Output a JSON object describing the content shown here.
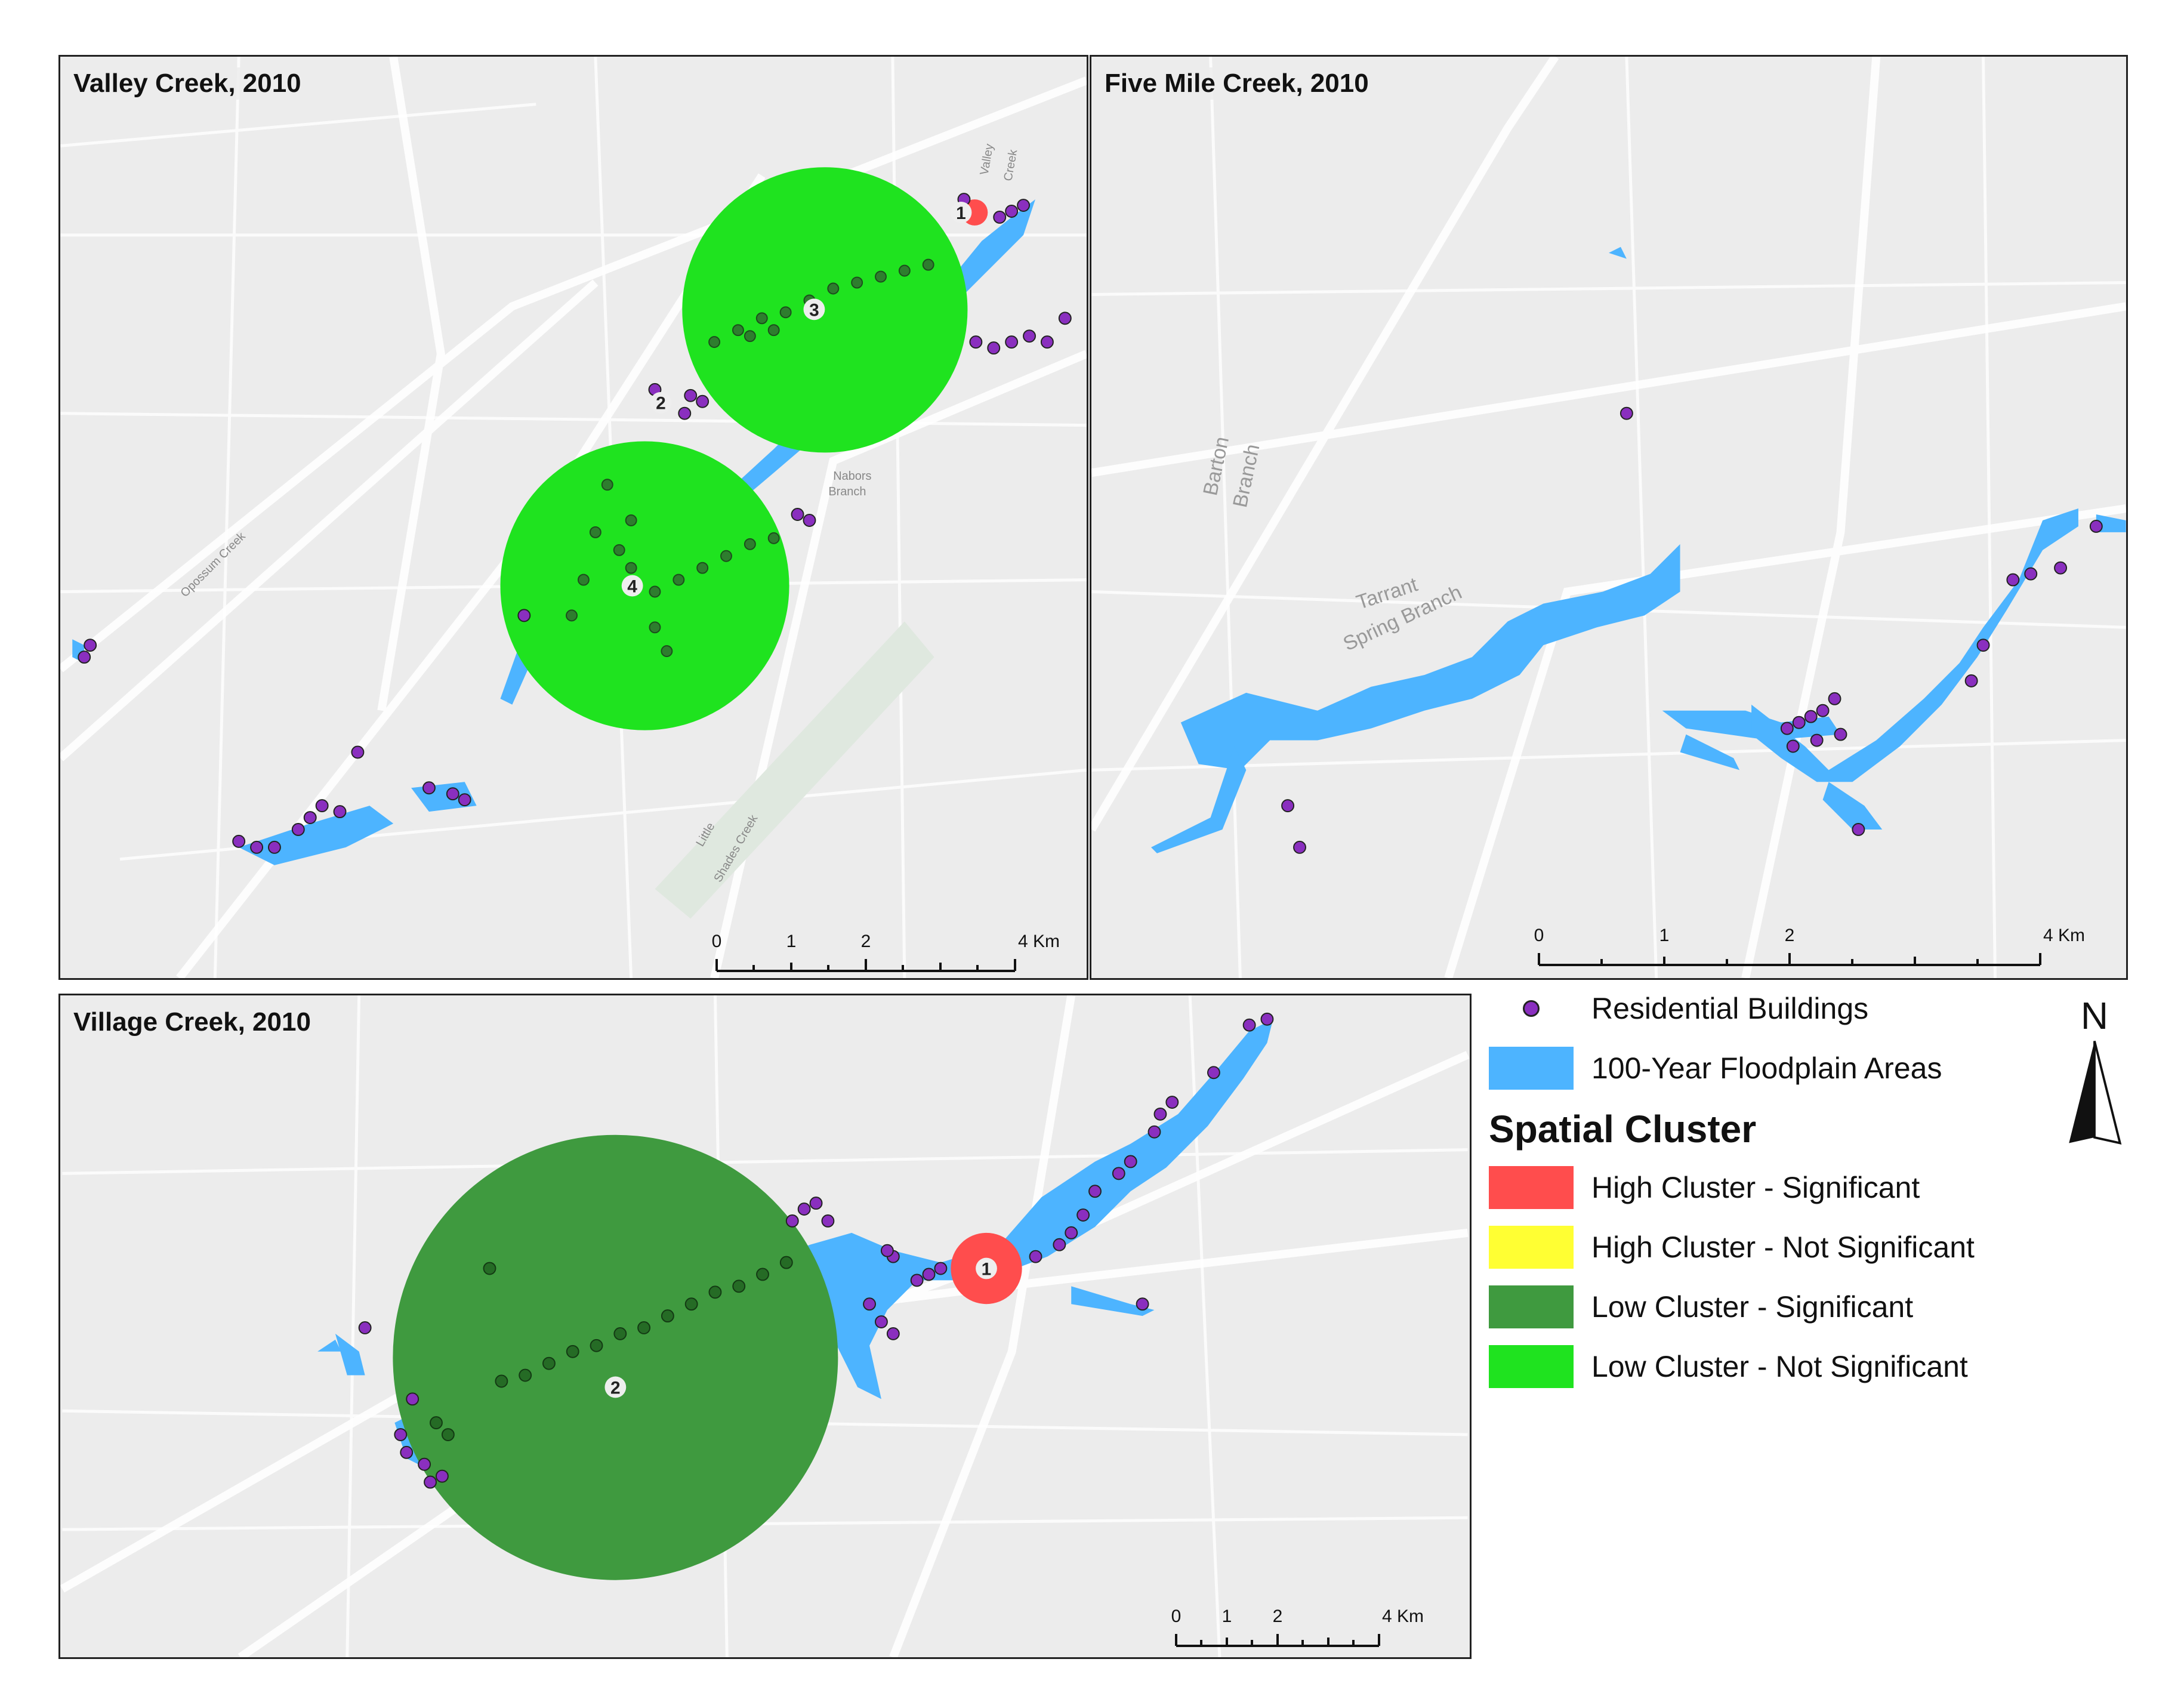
{
  "panels": {
    "valley": {
      "title": "Valley Creek, 2010",
      "labels": {
        "opossum_creek": "Opossum Creek",
        "nabors_branch_1": "Nabors",
        "nabors_branch_2": "Branch",
        "little_shades_1": "Little",
        "little_shades_2": "Shades Creek",
        "valley_creek_1": "Valley",
        "valley_creek_2": "Creek"
      },
      "clusters": [
        "1",
        "2",
        "3",
        "4"
      ],
      "scale": {
        "t0": "0",
        "t1": "1",
        "t2": "2",
        "t4": "4 Km"
      }
    },
    "fivemile": {
      "title": "Five Mile Creek, 2010",
      "labels": {
        "barton_1": "Barton",
        "barton_2": "Branch",
        "tarrant_1": "Tarrant",
        "tarrant_2": "Spring Branch"
      },
      "scale": {
        "t0": "0",
        "t1": "1",
        "t2": "2",
        "t4": "4 Km"
      }
    },
    "village": {
      "title": "Village Creek, 2010",
      "clusters": [
        "1",
        "2"
      ],
      "scale": {
        "t0": "0",
        "t1": "1",
        "t2": "2",
        "t4": "4 Km"
      }
    }
  },
  "legend": {
    "residential": "Residential Buildings",
    "floodplain": "100-Year Floodplain Areas",
    "heading": "Spatial Cluster",
    "items": [
      {
        "label": "High Cluster - Significant",
        "color": "#ff4d4d"
      },
      {
        "label": "High Cluster - Not Significant",
        "color": "#ffff33"
      },
      {
        "label": "Low Cluster - Significant",
        "color": "#3f9a3f"
      },
      {
        "label": "Low Cluster - Not Significant",
        "color": "#1fe31f"
      }
    ],
    "floodplain_color": "#4db4ff",
    "building_color": "#8a2fbf"
  },
  "north_arrow": {
    "letter": "N"
  }
}
